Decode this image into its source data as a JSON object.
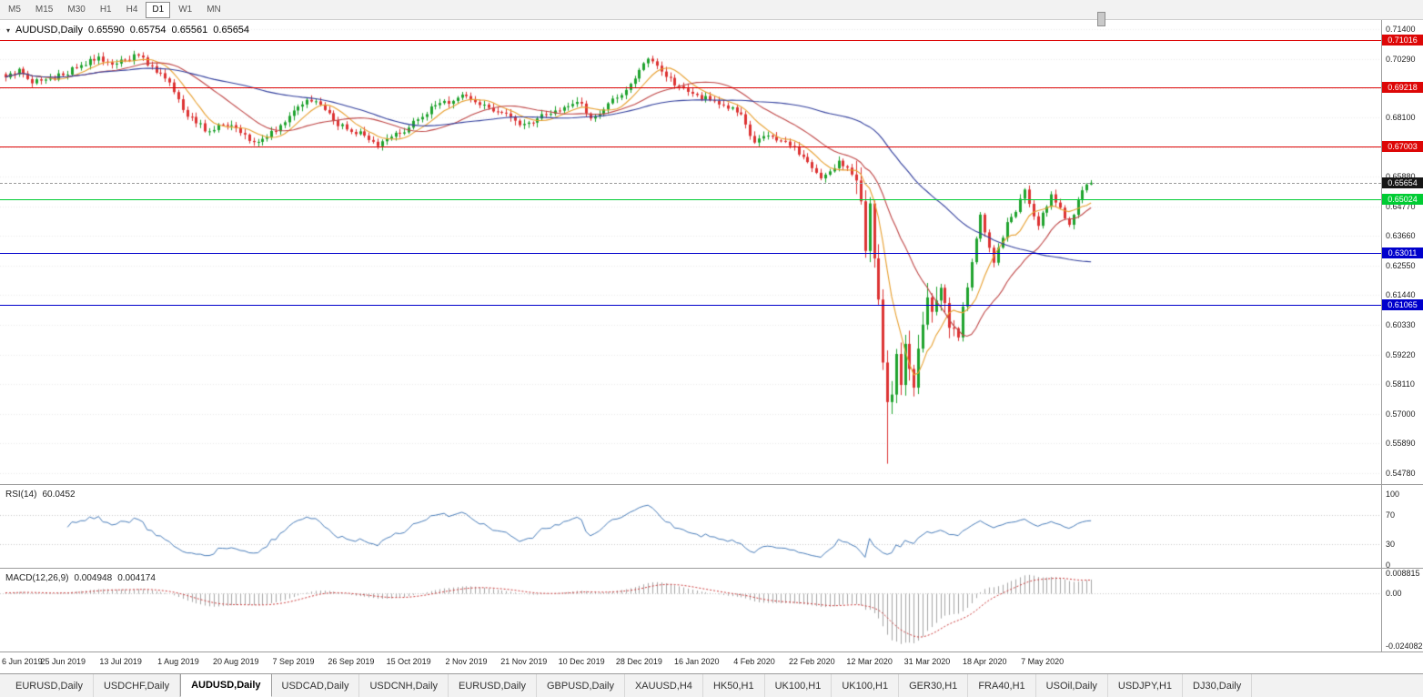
{
  "toolbar": {
    "timeframes": [
      {
        "label": "M5",
        "active": false
      },
      {
        "label": "M15",
        "active": false
      },
      {
        "label": "M30",
        "active": false
      },
      {
        "label": "H1",
        "active": false
      },
      {
        "label": "H4",
        "active": false
      },
      {
        "label": "D1",
        "active": true
      },
      {
        "label": "W1",
        "active": false
      },
      {
        "label": "MN",
        "active": false
      }
    ]
  },
  "chart": {
    "header": {
      "symbol": "AUDUSD,Daily",
      "open": "0.65590",
      "high": "0.65754",
      "low": "0.65561",
      "close": "0.65654"
    }
  },
  "indicators": {
    "rsi": {
      "name": "RSI(14)",
      "value": "60.0452"
    },
    "macd": {
      "name": "MACD(12,26,9)",
      "value_main": "0.004948",
      "value_signal": "0.004174"
    }
  },
  "bottom_tabs": [
    {
      "label": "EURUSD,Daily",
      "active": false
    },
    {
      "label": "USDCHF,Daily",
      "active": false
    },
    {
      "label": "AUDUSD,Daily",
      "active": true
    },
    {
      "label": "USDCAD,Daily",
      "active": false
    },
    {
      "label": "USDCNH,Daily",
      "active": false
    },
    {
      "label": "EURUSD,Daily",
      "active": false
    },
    {
      "label": "GBPUSD,Daily",
      "active": false
    },
    {
      "label": "XAUUSD,H4",
      "active": false
    },
    {
      "label": "HK50,H1",
      "active": false
    },
    {
      "label": "UK100,H1",
      "active": false
    },
    {
      "label": "UK100,H1",
      "active": false
    },
    {
      "label": "GER30,H1",
      "active": false
    },
    {
      "label": "FRA40,H1",
      "active": false
    },
    {
      "label": "USOil,Daily",
      "active": false
    },
    {
      "label": "USDJPY,H1",
      "active": false
    },
    {
      "label": "DJ30,Daily",
      "active": false
    }
  ],
  "chart_data": {
    "type": "candlestick",
    "symbol": "AUDUSD",
    "timeframe": "Daily",
    "candle_count": 246,
    "last_candle": {
      "o": 0.6559,
      "h": 0.65754,
      "l": 0.65561,
      "c": 0.65654
    },
    "current_price": {
      "v": 0.65654,
      "label": "0.65654"
    },
    "price_axis": {
      "min": 0.544,
      "max": 0.7175,
      "tick_step": 0.0111,
      "ticks": [
        {
          "v": 0.714,
          "label": "0.71400"
        },
        {
          "v": 0.7029,
          "label": "0.70290"
        },
        {
          "v": 0.6918,
          "label": "0.69180"
        },
        {
          "v": 0.681,
          "label": "0.68100"
        },
        {
          "v": 0.6699,
          "label": "0.66990"
        },
        {
          "v": 0.6588,
          "label": "0.65880"
        },
        {
          "v": 0.6477,
          "label": "0.64770"
        },
        {
          "v": 0.6366,
          "label": "0.63660"
        },
        {
          "v": 0.6255,
          "label": "0.62550"
        },
        {
          "v": 0.6144,
          "label": "0.61440"
        },
        {
          "v": 0.6033,
          "label": "0.60330"
        },
        {
          "v": 0.5922,
          "label": "0.59220"
        },
        {
          "v": 0.5811,
          "label": "0.58110"
        },
        {
          "v": 0.57,
          "label": "0.57000"
        },
        {
          "v": 0.5589,
          "label": "0.55890"
        },
        {
          "v": 0.5478,
          "label": "0.54780"
        }
      ]
    },
    "horizontal_lines": [
      {
        "price": 0.71016,
        "label": "0.71016",
        "color": "#dd0707",
        "type": "resistance"
      },
      {
        "price": 0.69218,
        "label": "0.69218",
        "color": "#dd0707",
        "type": "resistance"
      },
      {
        "price": 0.67003,
        "label": "0.67003",
        "color": "#dd0707",
        "type": "resistance"
      },
      {
        "price": 0.65024,
        "label": "0.65024",
        "color": "#00cc33",
        "type": "pivot"
      },
      {
        "price": 0.63011,
        "label": "0.63011",
        "color": "#0000cc",
        "type": "support"
      },
      {
        "price": 0.61065,
        "label": "0.61065",
        "color": "#0000cc",
        "type": "support"
      }
    ],
    "x_labels": [
      {
        "i": 0,
        "label": "6 Jun 2019"
      },
      {
        "i": 13,
        "label": "25 Jun 2019"
      },
      {
        "i": 26,
        "label": "13 Jul 2019"
      },
      {
        "i": 39,
        "label": "1 Aug 2019"
      },
      {
        "i": 52,
        "label": "20 Aug 2019"
      },
      {
        "i": 65,
        "label": "7 Sep 2019"
      },
      {
        "i": 78,
        "label": "26 Sep 2019"
      },
      {
        "i": 91,
        "label": "15 Oct 2019"
      },
      {
        "i": 104,
        "label": "2 Nov 2019"
      },
      {
        "i": 117,
        "label": "21 Nov 2019"
      },
      {
        "i": 130,
        "label": "10 Dec 2019"
      },
      {
        "i": 143,
        "label": "28 Dec 2019"
      },
      {
        "i": 156,
        "label": "16 Jan 2020"
      },
      {
        "i": 169,
        "label": "4 Feb 2020"
      },
      {
        "i": 182,
        "label": "22 Feb 2020"
      },
      {
        "i": 195,
        "label": "12 Mar 2020"
      },
      {
        "i": 208,
        "label": "31 Mar 2020"
      },
      {
        "i": 221,
        "label": "18 Apr 2020"
      },
      {
        "i": 234,
        "label": "7 May 2020"
      }
    ],
    "waypoints": [
      [
        0,
        0.696
      ],
      [
        3,
        0.6992
      ],
      [
        6,
        0.6938
      ],
      [
        9,
        0.6952
      ],
      [
        13,
        0.6968
      ],
      [
        17,
        0.7006
      ],
      [
        21,
        0.7038
      ],
      [
        24,
        0.7008
      ],
      [
        27,
        0.7026
      ],
      [
        30,
        0.7042
      ],
      [
        33,
        0.7002
      ],
      [
        36,
        0.6956
      ],
      [
        38,
        0.6905
      ],
      [
        40,
        0.6838
      ],
      [
        43,
        0.6788
      ],
      [
        46,
        0.6758
      ],
      [
        49,
        0.6782
      ],
      [
        52,
        0.677
      ],
      [
        55,
        0.6722
      ],
      [
        58,
        0.673
      ],
      [
        61,
        0.6758
      ],
      [
        63,
        0.6792
      ],
      [
        65,
        0.6836
      ],
      [
        68,
        0.6876
      ],
      [
        71,
        0.6858
      ],
      [
        74,
        0.68
      ],
      [
        78,
        0.6756
      ],
      [
        81,
        0.6742
      ],
      [
        84,
        0.6702
      ],
      [
        87,
        0.6738
      ],
      [
        91,
        0.6772
      ],
      [
        94,
        0.6812
      ],
      [
        97,
        0.6856
      ],
      [
        101,
        0.6872
      ],
      [
        104,
        0.689
      ],
      [
        108,
        0.6858
      ],
      [
        112,
        0.6828
      ],
      [
        115,
        0.6798
      ],
      [
        117,
        0.6786
      ],
      [
        120,
        0.6806
      ],
      [
        124,
        0.6836
      ],
      [
        127,
        0.6852
      ],
      [
        130,
        0.6862
      ],
      [
        132,
        0.6806
      ],
      [
        135,
        0.684
      ],
      [
        138,
        0.6884
      ],
      [
        141,
        0.6936
      ],
      [
        143,
        0.6988
      ],
      [
        145,
        0.703
      ],
      [
        148,
        0.6982
      ],
      [
        151,
        0.693
      ],
      [
        154,
        0.6906
      ],
      [
        156,
        0.6894
      ],
      [
        160,
        0.6872
      ],
      [
        164,
        0.6848
      ],
      [
        166,
        0.6822
      ],
      [
        169,
        0.6716
      ],
      [
        172,
        0.6742
      ],
      [
        175,
        0.6722
      ],
      [
        178,
        0.67
      ],
      [
        180,
        0.6662
      ],
      [
        182,
        0.662
      ],
      [
        184,
        0.6582
      ],
      [
        186,
        0.6608
      ],
      [
        188,
        0.6648
      ],
      [
        190,
        0.6622
      ],
      [
        192,
        0.6574
      ],
      [
        193,
        0.6496
      ],
      [
        194,
        0.631
      ],
      [
        195,
        0.6488
      ],
      [
        196,
        0.6282
      ],
      [
        197,
        0.6128
      ],
      [
        198,
        0.5892
      ],
      [
        199,
        0.5744
      ],
      [
        200,
        0.5772
      ],
      [
        201,
        0.5924
      ],
      [
        202,
        0.5808
      ],
      [
        203,
        0.5962
      ],
      [
        204,
        0.5868
      ],
      [
        205,
        0.5798
      ],
      [
        206,
        0.5944
      ],
      [
        207,
        0.6034
      ],
      [
        208,
        0.6136
      ],
      [
        209,
        0.6082
      ],
      [
        211,
        0.6172
      ],
      [
        213,
        0.6022
      ],
      [
        215,
        0.5986
      ],
      [
        216,
        0.6102
      ],
      [
        218,
        0.6268
      ],
      [
        220,
        0.6446
      ],
      [
        223,
        0.6266
      ],
      [
        226,
        0.6418
      ],
      [
        228,
        0.6456
      ],
      [
        230,
        0.654
      ],
      [
        233,
        0.6404
      ],
      [
        236,
        0.6522
      ],
      [
        238,
        0.6472
      ],
      [
        240,
        0.6408
      ],
      [
        242,
        0.6502
      ],
      [
        244,
        0.6559
      ],
      [
        245,
        0.65654
      ]
    ],
    "moving_averages": [
      {
        "period": 8,
        "color": "#e8a030"
      },
      {
        "period": 21,
        "color": "#c04848"
      },
      {
        "period": 55,
        "color": "#33409e"
      }
    ],
    "rsi": {
      "period": 14,
      "current": 60.0452,
      "levels": [
        70,
        30
      ],
      "color": "#4a7ebb",
      "axis_labels": [
        {
          "v": 100,
          "label": "100"
        },
        {
          "v": 70,
          "label": "70"
        },
        {
          "v": 30,
          "label": "30"
        },
        {
          "v": 0,
          "label": "0"
        }
      ]
    },
    "macd": {
      "fast": 12,
      "slow": 26,
      "signal": 9,
      "current_main": 0.004948,
      "current_signal": 0.004174,
      "hist_color": "#a6a6a6",
      "signal_color": "#cc3b3b",
      "axis_labels": [
        {
          "v": 0.008815,
          "label": "0.008815"
        },
        {
          "v": 0,
          "label": "0.00"
        },
        {
          "v": -0.024082,
          "label": "-0.024082"
        }
      ]
    },
    "colors": {
      "up": "#1fa32e",
      "down": "#dd3333",
      "bg": "#ffffff",
      "grid": "#ebebeb"
    }
  }
}
